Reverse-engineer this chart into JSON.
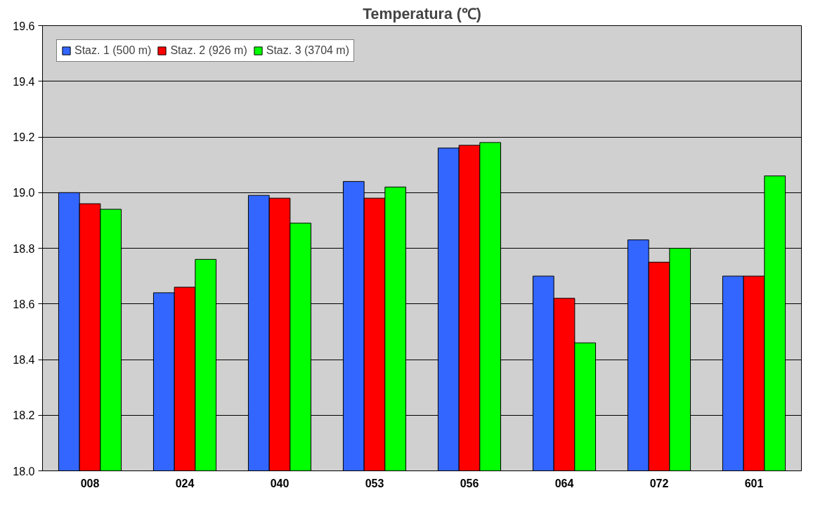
{
  "chart_data": {
    "type": "bar",
    "title": "Temperatura (℃)",
    "categories": [
      "008",
      "024",
      "040",
      "053",
      "056",
      "064",
      "072",
      "601"
    ],
    "series": [
      {
        "name": "Staz. 1 (500 m)",
        "color": "#3366ff",
        "values": [
          19.0,
          18.64,
          18.99,
          19.04,
          19.16,
          18.7,
          18.83,
          18.7
        ]
      },
      {
        "name": "Staz. 2 (926 m)",
        "color": "#ff0000",
        "values": [
          18.96,
          18.66,
          18.98,
          18.98,
          19.17,
          18.62,
          18.75,
          18.7
        ]
      },
      {
        "name": "Staz. 3 (3704 m)",
        "color": "#00ff00",
        "values": [
          18.94,
          18.76,
          18.89,
          19.02,
          19.18,
          18.46,
          18.8,
          19.06
        ]
      }
    ],
    "ylim": [
      18.0,
      19.6
    ],
    "yticks": [
      {
        "value": 18.0,
        "label": "18.0"
      },
      {
        "value": 18.2,
        "label": "18.2"
      },
      {
        "value": 18.4,
        "label": "18.4"
      },
      {
        "value": 18.6,
        "label": "18.6"
      },
      {
        "value": 18.8,
        "label": "18.8"
      },
      {
        "value": 19.0,
        "label": "19.0"
      },
      {
        "value": 19.2,
        "label": "19.2"
      },
      {
        "value": 19.4,
        "label": "19.4"
      },
      {
        "value": 19.6,
        "label": "19.6"
      }
    ],
    "grid": "y",
    "legend": "top left"
  }
}
